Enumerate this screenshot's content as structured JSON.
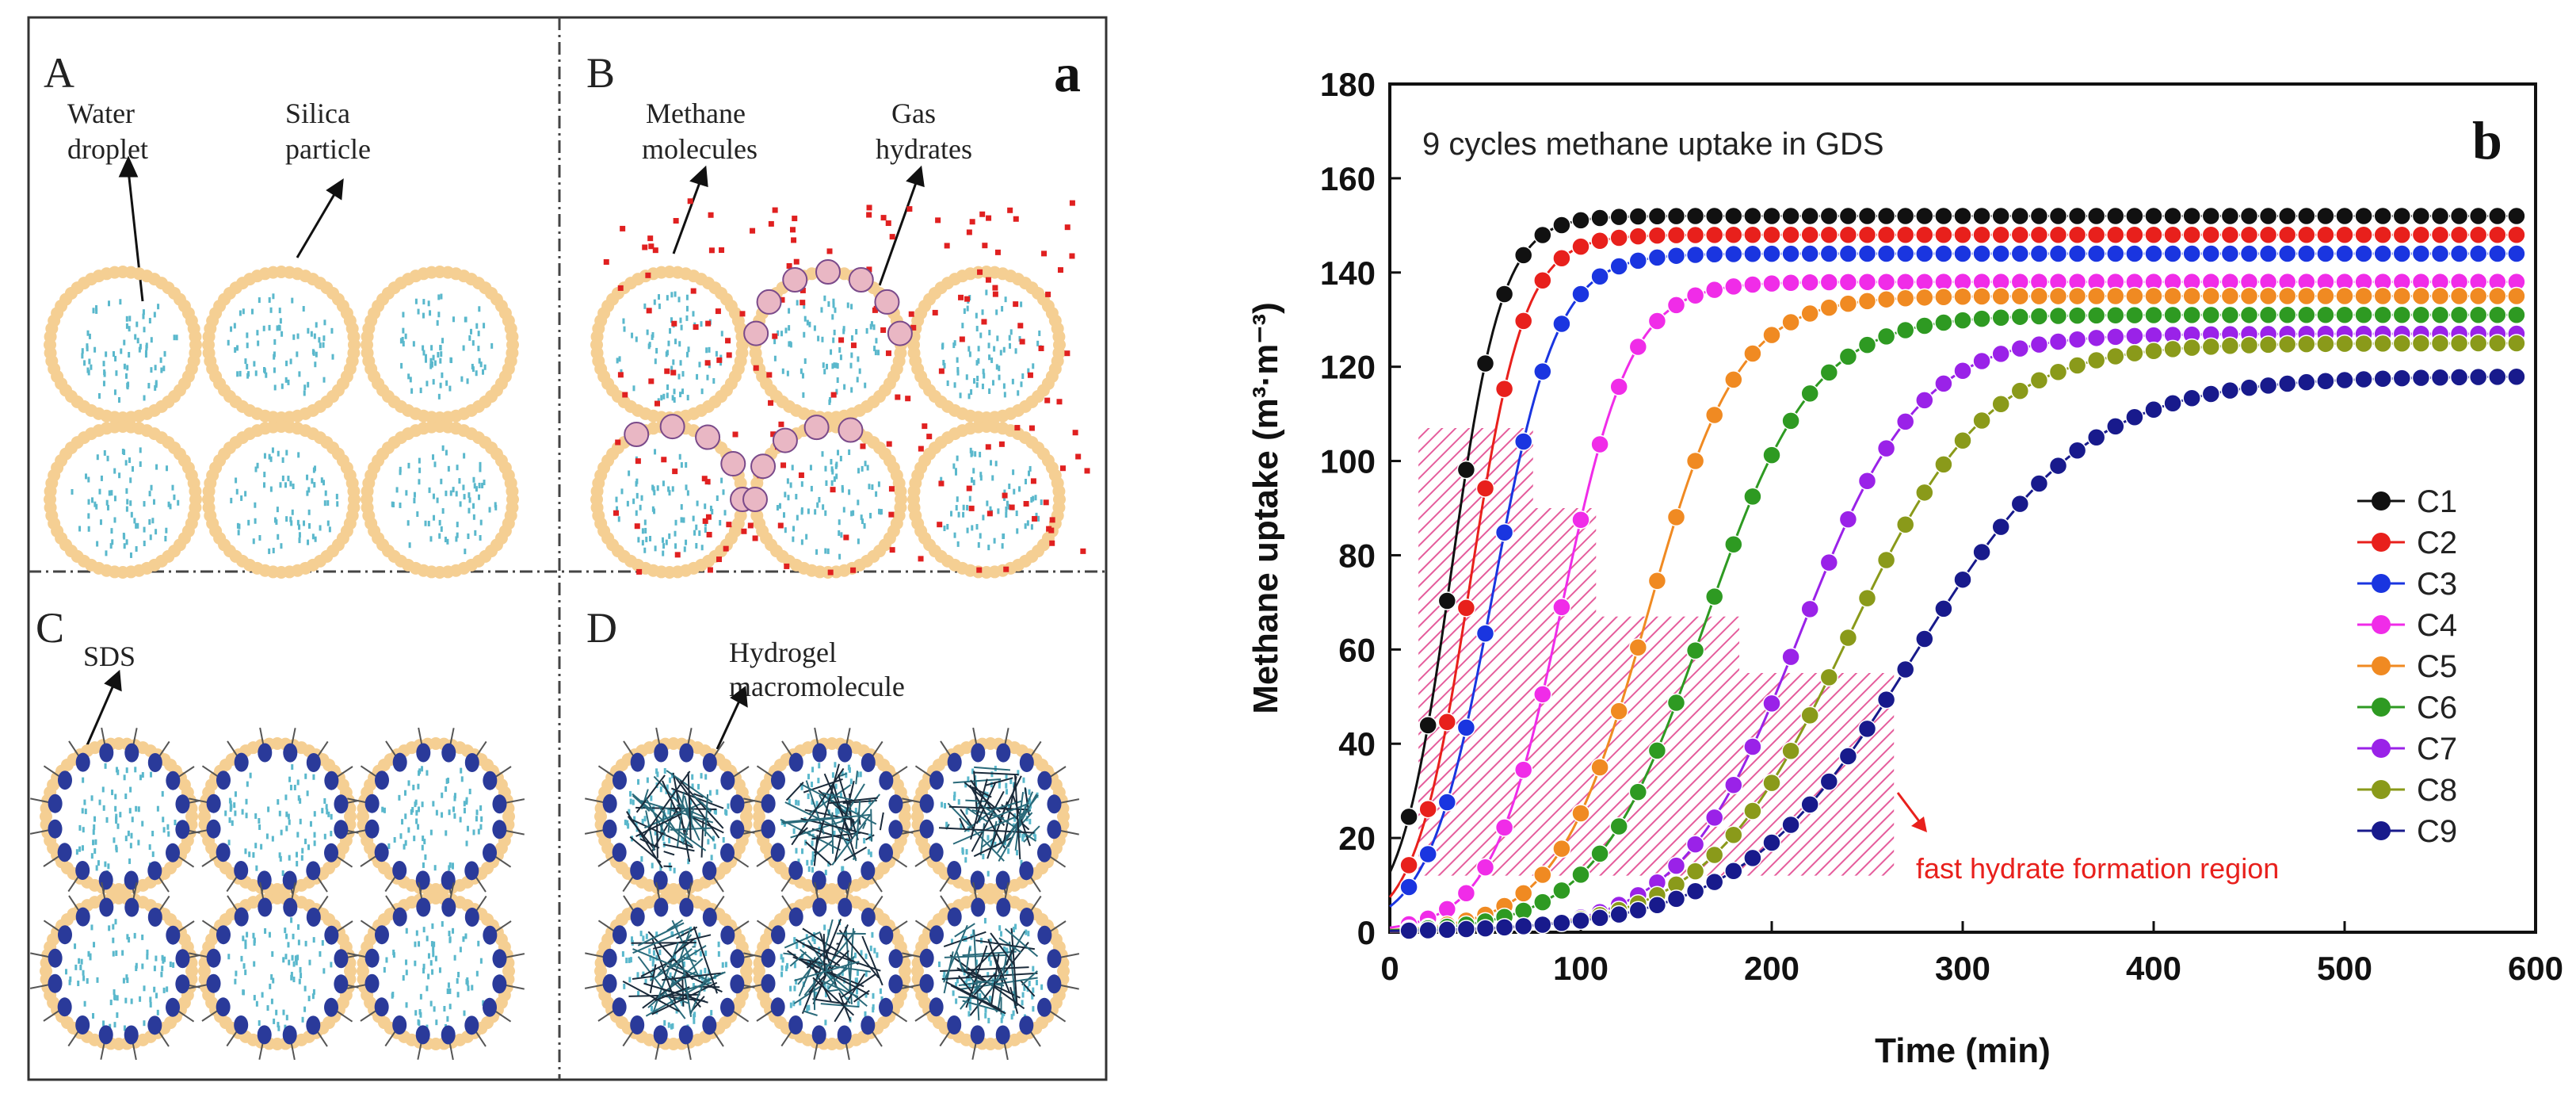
{
  "panel_a": {
    "figure_label": "a",
    "sub_panels": {
      "A": {
        "letter": "A",
        "labels": [
          "Water",
          "droplet",
          "Silica",
          "particle"
        ]
      },
      "B": {
        "letter": "B",
        "labels": [
          "Methane",
          "molecules",
          "Gas",
          "hydrates"
        ]
      },
      "C": {
        "letter": "C",
        "labels": [
          "SDS"
        ]
      },
      "D": {
        "letter": "D",
        "labels": [
          "Hydrogel",
          "macromolecule"
        ]
      }
    }
  },
  "panel_b": {
    "figure_label": "b",
    "annotation": "fast hydrate formation region"
  },
  "colors": {
    "C1": "#111111",
    "C2": "#e8201c",
    "C3": "#1a35e0",
    "C4": "#f02ce8",
    "C5": "#f08a22",
    "C6": "#2e9a22",
    "C7": "#9a22e8",
    "C8": "#8a9a1a",
    "C9": "#181a8c",
    "shell": "#f5cf93",
    "droplet": "#5ab8cc",
    "methane": "#e02020",
    "surfactant": "#2a3a9a",
    "hatch": "#e0408a"
  },
  "chart_data": {
    "type": "line",
    "title": "9 cycles methane uptake in GDS",
    "xlabel": "Time (min)",
    "ylabel": "Methane uptake (m³·m⁻³)",
    "xlim": [
      0,
      600
    ],
    "ylim": [
      0,
      180
    ],
    "xticks": [
      "0",
      "100",
      "200",
      "300",
      "400",
      "500",
      "600"
    ],
    "yticks": [
      "0",
      "20",
      "40",
      "60",
      "80",
      "100",
      "120",
      "140",
      "160",
      "180"
    ],
    "legend_position": "bottom-right",
    "series": [
      {
        "name": "C1",
        "t0": 32,
        "final": 152,
        "k": 0.075
      },
      {
        "name": "C2",
        "t0": 42,
        "final": 148,
        "k": 0.07
      },
      {
        "name": "C3",
        "t0": 54,
        "final": 144,
        "k": 0.06
      },
      {
        "name": "C4",
        "t0": 90,
        "final": 138,
        "k": 0.055
      },
      {
        "name": "C5",
        "t0": 135,
        "final": 135,
        "k": 0.042
      },
      {
        "name": "C6",
        "t0": 165,
        "final": 131,
        "k": 0.035
      },
      {
        "name": "C7",
        "t0": 215,
        "final": 127,
        "k": 0.032
      },
      {
        "name": "C8",
        "t0": 240,
        "final": 125,
        "k": 0.027
      },
      {
        "name": "C9",
        "t0": 275,
        "final": 118,
        "k": 0.022
      }
    ]
  }
}
